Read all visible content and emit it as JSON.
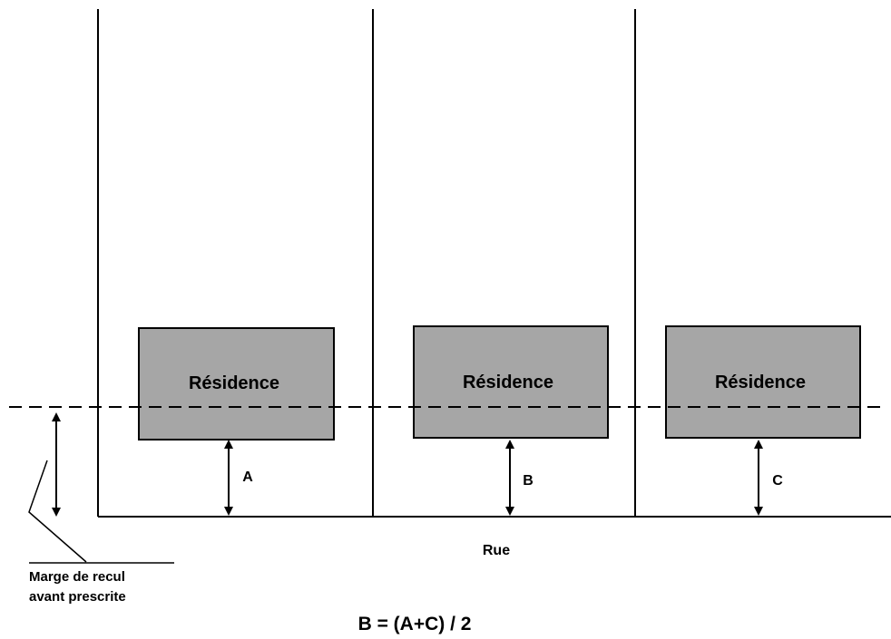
{
  "diagram": {
    "colors": {
      "line": "#000000",
      "house_fill": "#a6a6a6",
      "background": "#ffffff"
    },
    "houses": [
      {
        "label": "Résidence"
      },
      {
        "label": "Résidence"
      },
      {
        "label": "Résidence"
      }
    ],
    "distances": [
      {
        "label": "A"
      },
      {
        "label": "B"
      },
      {
        "label": "C"
      }
    ],
    "street_label": "Rue",
    "setback_label_line1": "Marge de recul",
    "setback_label_line2": "avant prescrite",
    "formula": "B = (A+C) / 2"
  }
}
